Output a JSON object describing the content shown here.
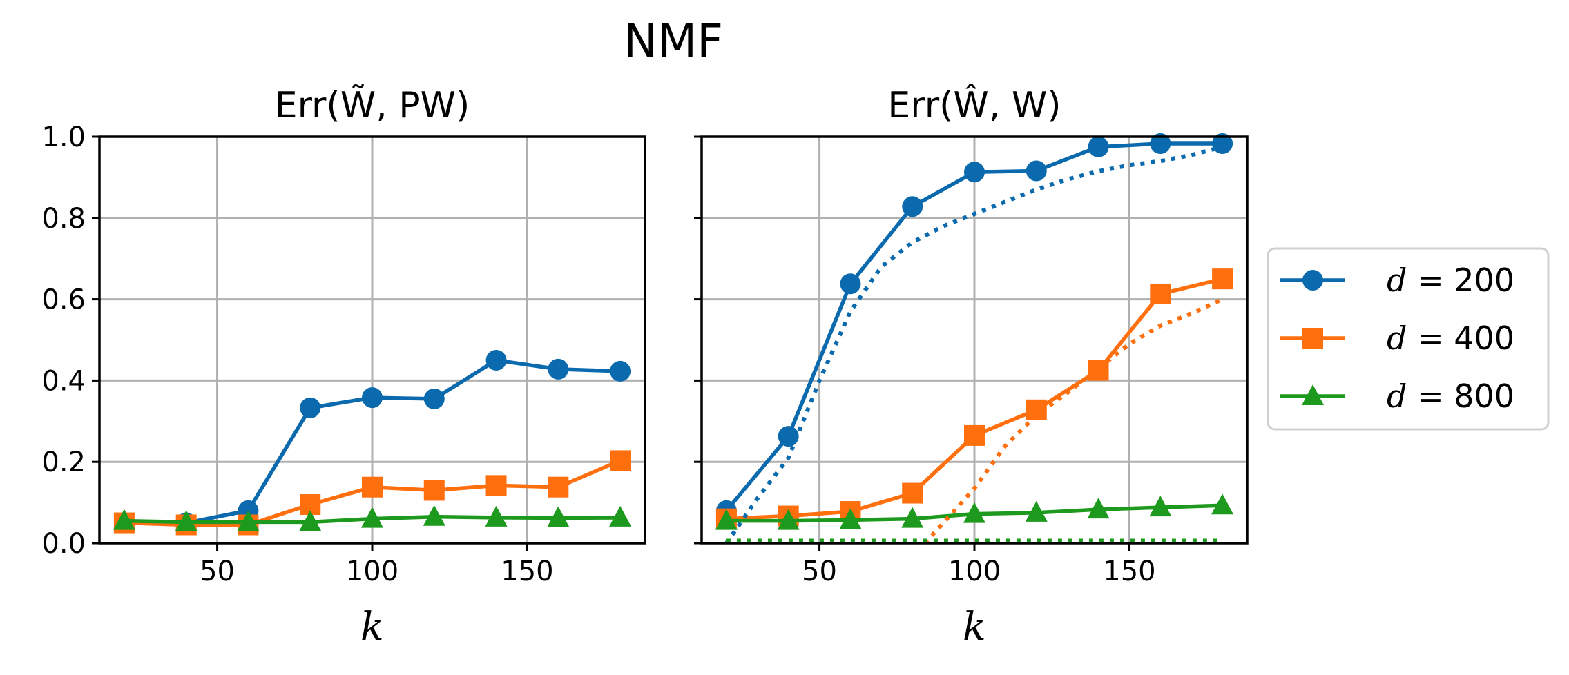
{
  "figure": {
    "suptitle": "NMF"
  },
  "legend": {
    "position": "center-right",
    "entries": [
      {
        "label": "d = 200",
        "var": "d",
        "value": "200",
        "color": "#0a6aad",
        "marker": "circle"
      },
      {
        "label": "d = 400",
        "var": "d",
        "value": "400",
        "color": "#ff6f0e",
        "marker": "square"
      },
      {
        "label": "d = 800",
        "var": "d",
        "value": "800",
        "color": "#1d9a1d",
        "marker": "triangle"
      }
    ]
  },
  "chart_data": [
    {
      "type": "line",
      "title": "Err(W̃, PW)",
      "xlabel": "k",
      "ylabel": "",
      "xlim": [
        12,
        188
      ],
      "ylim": [
        0,
        1.0
      ],
      "xticks": [
        50,
        100,
        150
      ],
      "yticks": [
        "0.0",
        "0.2",
        "0.4",
        "0.6",
        "0.8",
        "1.0"
      ],
      "grid": true,
      "x": [
        20,
        40,
        60,
        80,
        100,
        120,
        140,
        160,
        180
      ],
      "series": [
        {
          "name": "d = 200",
          "color": "#0a6aad",
          "marker": "circle",
          "style": "solid",
          "values": [
            0.05,
            0.05,
            0.08,
            0.333,
            0.358,
            0.355,
            0.45,
            0.428,
            0.423
          ]
        },
        {
          "name": "d = 400",
          "color": "#ff6f0e",
          "marker": "square",
          "style": "solid",
          "values": [
            0.05,
            0.045,
            0.045,
            0.095,
            0.138,
            0.13,
            0.142,
            0.138,
            0.203
          ]
        },
        {
          "name": "d = 800",
          "color": "#1d9a1d",
          "marker": "triangle",
          "style": "solid",
          "values": [
            0.055,
            0.052,
            0.052,
            0.052,
            0.06,
            0.065,
            0.063,
            0.062,
            0.063
          ]
        }
      ]
    },
    {
      "type": "line",
      "title": "Err(Ŵ, W)",
      "xlabel": "k",
      "ylabel": "",
      "xlim": [
        12,
        188
      ],
      "ylim": [
        0,
        1.0
      ],
      "xticks": [
        50,
        100,
        150
      ],
      "yticks": [],
      "grid": true,
      "x": [
        20,
        40,
        60,
        80,
        100,
        120,
        140,
        160,
        180
      ],
      "series": [
        {
          "name": "d = 200",
          "color": "#0a6aad",
          "marker": "circle",
          "style": "solid",
          "values": [
            0.08,
            0.263,
            0.638,
            0.828,
            0.913,
            0.916,
            0.975,
            0.983,
            0.983
          ]
        },
        {
          "name": "d = 400",
          "color": "#ff6f0e",
          "marker": "square",
          "style": "solid",
          "values": [
            0.06,
            0.067,
            0.078,
            0.123,
            0.265,
            0.328,
            0.425,
            0.613,
            0.65
          ]
        },
        {
          "name": "d = 800",
          "color": "#1d9a1d",
          "marker": "triangle",
          "style": "solid",
          "values": [
            0.055,
            0.055,
            0.057,
            0.06,
            0.072,
            0.075,
            0.083,
            0.088,
            0.093
          ]
        },
        {
          "name": "d = 200 (dotted)",
          "color": "#0a6aad",
          "marker": "none",
          "style": "dotted",
          "x": [
            20,
            30,
            40,
            50,
            60,
            70,
            80,
            90,
            100,
            110,
            120,
            130,
            140,
            150,
            160,
            170,
            180
          ],
          "values": [
            0.0,
            0.11,
            0.21,
            0.4,
            0.57,
            0.68,
            0.74,
            0.78,
            0.81,
            0.84,
            0.87,
            0.895,
            0.915,
            0.93,
            0.94,
            0.955,
            0.975
          ]
        },
        {
          "name": "d = 400 (dotted)",
          "color": "#ff6f0e",
          "marker": "none",
          "style": "dotted",
          "x": [
            84,
            90,
            100,
            110,
            120,
            130,
            140,
            150,
            160,
            170,
            180
          ],
          "values": [
            0.0,
            0.05,
            0.135,
            0.24,
            0.315,
            0.37,
            0.43,
            0.49,
            0.535,
            0.565,
            0.6
          ]
        },
        {
          "name": "d = 800 (dotted)",
          "color": "#1d9a1d",
          "marker": "none",
          "style": "dotted",
          "x": [
            20,
            180
          ],
          "values": [
            0.006,
            0.006
          ]
        }
      ]
    }
  ]
}
